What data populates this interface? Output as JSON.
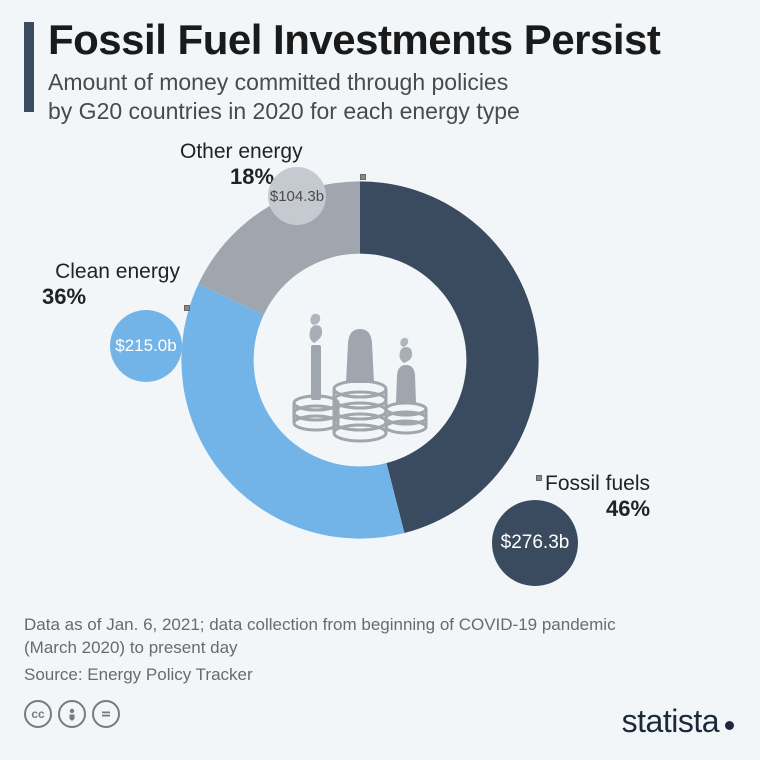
{
  "header": {
    "title": "Fossil Fuel Investments Persist",
    "subtitle": "Amount of money committed through policies\nby G20 countries in 2020 for each energy type"
  },
  "chart": {
    "type": "donut",
    "inner_radius_pct": 58,
    "outer_radius_pct": 100,
    "start_angle_deg": 0,
    "background_color": "#f3f6f9",
    "segments": [
      {
        "key": "fossil",
        "name": "Fossil fuels",
        "pct": 46,
        "value_label": "$276.3b",
        "color": "#3a4a5f",
        "badge": {
          "diameter": 86,
          "text_color": "#ffffff",
          "font_size": 19
        },
        "label_align": "right"
      },
      {
        "key": "clean",
        "name": "Clean energy",
        "pct": 36,
        "value_label": "$215.0b",
        "color": "#72b4e8",
        "badge": {
          "diameter": 72,
          "text_color": "#ffffff",
          "font_size": 17
        },
        "label_align": "left"
      },
      {
        "key": "other",
        "name": "Other energy",
        "pct": 18,
        "value_label": "$104.3b",
        "color": "#9fa6ae",
        "badge": {
          "diameter": 58,
          "text_color": "#5a5a5a",
          "font_size": 16
        },
        "label_align": "left"
      }
    ],
    "center_icon_color": "#9fa6ae"
  },
  "footnote": {
    "line1": "Data as of Jan. 6, 2021; data collection from beginning of COVID-19 pandemic",
    "line2": "(March 2020) to present day",
    "source": "Source: Energy Policy Tracker"
  },
  "footer": {
    "license_glyphs": [
      "cc",
      "by",
      "nd"
    ],
    "brand": "statista"
  },
  "colors": {
    "page_bg": "#f3f6f9",
    "accent_bar": "#3a4a5f",
    "title_color": "#1a1a1a",
    "subtitle_color": "#4a4a4a",
    "footnote_color": "#6a6a6a"
  },
  "typography": {
    "title_size_pt": 32,
    "subtitle_size_pt": 17,
    "label_size_pt": 16,
    "pct_weight": 700
  }
}
